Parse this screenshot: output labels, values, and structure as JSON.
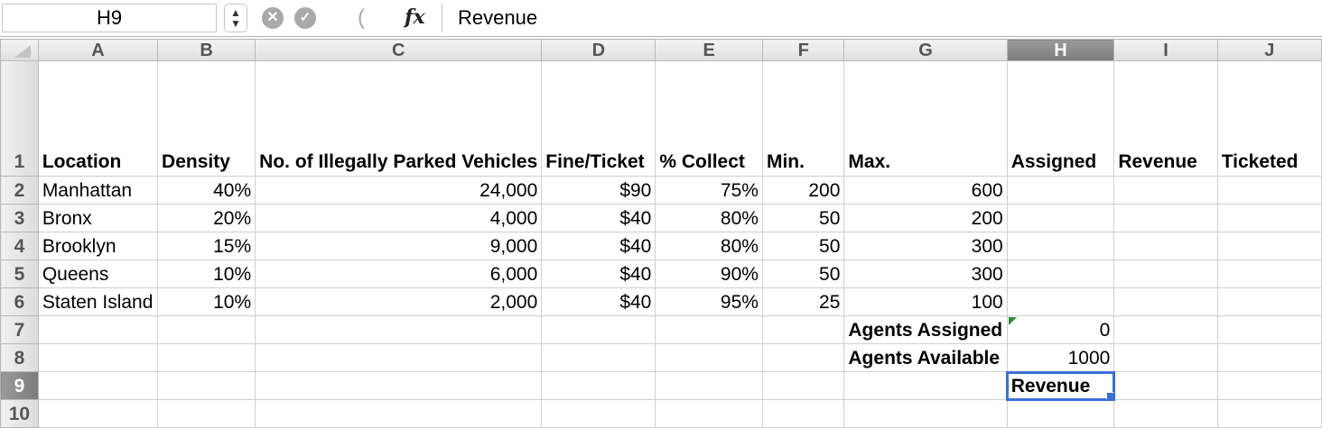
{
  "formula_bar": {
    "cell_ref": "H9",
    "stepper_icon": "updown-arrows",
    "cancel_symbol": "✕",
    "enter_symbol": "✓",
    "paren_symbol": "(",
    "fx_label": "fx",
    "content": "Revenue"
  },
  "columns": [
    "A",
    "B",
    "C",
    "D",
    "E",
    "F",
    "G",
    "H",
    "I",
    "J"
  ],
  "selected_column": "H",
  "selected_row": "9",
  "header_row": {
    "row_label": "1",
    "cells": [
      "Location",
      "Density",
      "No. of Illegally Parked Vehicles",
      "Fine/Ticket",
      "% Collect",
      "Min.",
      "Max.",
      "Assigned",
      "Revenue",
      "Ticketed"
    ]
  },
  "rows": [
    {
      "row_label": "2",
      "cells": [
        "Manhattan",
        "40%",
        "24,000",
        "$90",
        "75%",
        "200",
        "600",
        "",
        "",
        ""
      ]
    },
    {
      "row_label": "3",
      "cells": [
        "Bronx",
        "20%",
        "4,000",
        "$40",
        "80%",
        "50",
        "200",
        "",
        "",
        ""
      ]
    },
    {
      "row_label": "4",
      "cells": [
        "Brooklyn",
        "15%",
        "9,000",
        "$40",
        "80%",
        "50",
        "300",
        "",
        "",
        ""
      ]
    },
    {
      "row_label": "5",
      "cells": [
        "Queens",
        "10%",
        "6,000",
        "$40",
        "90%",
        "50",
        "300",
        "",
        "",
        ""
      ]
    },
    {
      "row_label": "6",
      "cells": [
        "Staten Island",
        "10%",
        "2,000",
        "$40",
        "95%",
        "25",
        "100",
        "",
        "",
        ""
      ]
    },
    {
      "row_label": "7",
      "cells": [
        "",
        "",
        "",
        "",
        "",
        "",
        "Agents Assigned",
        "0",
        "",
        ""
      ]
    },
    {
      "row_label": "8",
      "cells": [
        "",
        "",
        "",
        "",
        "",
        "",
        "Agents Available",
        "1000",
        "",
        ""
      ]
    },
    {
      "row_label": "9",
      "cells": [
        "",
        "",
        "",
        "",
        "",
        "",
        "",
        "Revenue",
        "",
        ""
      ]
    },
    {
      "row_label": "10",
      "cells": [
        "",
        "",
        "",
        "",
        "",
        "",
        "",
        "",
        "",
        ""
      ]
    }
  ],
  "colors": {
    "selection_border": "#3a6fd8",
    "comment_marker": "#2e8b2e"
  }
}
